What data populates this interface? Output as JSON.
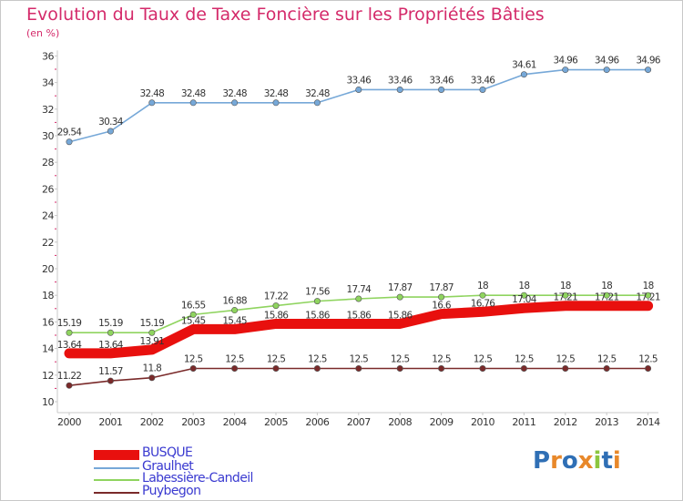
{
  "title": "Evolution du Taux de Taxe Foncière sur les Propriétés Bâties",
  "unit_label": "(en %)",
  "brand": {
    "text": "Proxiti",
    "letters": [
      "P",
      "r",
      "o",
      "x",
      "i",
      "t",
      "i"
    ],
    "letter_colors": [
      "#2f6fb5",
      "#e8882a",
      "#2f6fb5",
      "#e8882a",
      "#8cc63f",
      "#2f6fb5",
      "#e8882a"
    ]
  },
  "chart_data": {
    "type": "line",
    "title": "Evolution du Taux de Taxe Foncière sur les Propriétés Bâties",
    "ylabel": "(en %)",
    "ylim": [
      10,
      36
    ],
    "yticks": [
      10,
      12,
      14,
      16,
      18,
      20,
      22,
      24,
      26,
      28,
      30,
      32,
      34,
      36
    ],
    "grid": false,
    "legend_placement": "bottom-left",
    "categories": [
      "2000",
      "2001",
      "2002",
      "2003",
      "2004",
      "2005",
      "2006",
      "2007",
      "2008",
      "2009",
      "2010",
      "2011",
      "2012",
      "2013",
      "2014"
    ],
    "series": [
      {
        "name": "BUSQUE",
        "color": "#e8100e",
        "values": [
          13.64,
          13.64,
          13.91,
          15.45,
          15.45,
          15.86,
          15.86,
          15.86,
          15.86,
          16.6,
          16.76,
          17.04,
          17.21,
          17.21,
          17.21
        ],
        "labels": [
          "13.64",
          "13.64",
          "13.91",
          "15.45",
          "15.45",
          "15.86",
          "15.86",
          "15.86",
          "15.86",
          "16.6",
          "16.76",
          "17.04",
          "17.21",
          "17.21",
          "17.21"
        ]
      },
      {
        "name": "Graulhet",
        "color": "#76a8d8",
        "values": [
          29.54,
          30.34,
          32.48,
          32.48,
          32.48,
          32.48,
          32.48,
          33.46,
          33.46,
          33.46,
          33.46,
          34.61,
          34.96,
          34.96,
          34.96
        ],
        "labels": [
          "29.54",
          "30.34",
          "32.48",
          "32.48",
          "32.48",
          "32.48",
          "32.48",
          "33.46",
          "33.46",
          "33.46",
          "33.46",
          "34.61",
          "34.96",
          "34.96",
          "34.96"
        ]
      },
      {
        "name": "Labessière-Candeil",
        "color": "#8fd45f",
        "values": [
          15.19,
          15.19,
          15.19,
          16.55,
          16.88,
          17.22,
          17.56,
          17.74,
          17.87,
          17.87,
          18,
          18,
          18,
          18,
          18
        ],
        "labels": [
          "15.19",
          "15.19",
          "15.19",
          "16.55",
          "16.88",
          "17.22",
          "17.56",
          "17.74",
          "17.87",
          "17.87",
          "18",
          "18",
          "18",
          "18",
          "18"
        ]
      },
      {
        "name": "Puybegon",
        "color": "#7a2a2a",
        "values": [
          11.22,
          11.57,
          11.8,
          12.5,
          12.5,
          12.5,
          12.5,
          12.5,
          12.5,
          12.5,
          12.5,
          12.5,
          12.5,
          12.5,
          12.5
        ],
        "labels": [
          "11.22",
          "11.57",
          "11.8",
          "12.5",
          "12.5",
          "12.5",
          "12.5",
          "12.5",
          "12.5",
          "12.5",
          "12.5",
          "12.5",
          "12.5",
          "12.5",
          "12.5"
        ]
      }
    ]
  }
}
